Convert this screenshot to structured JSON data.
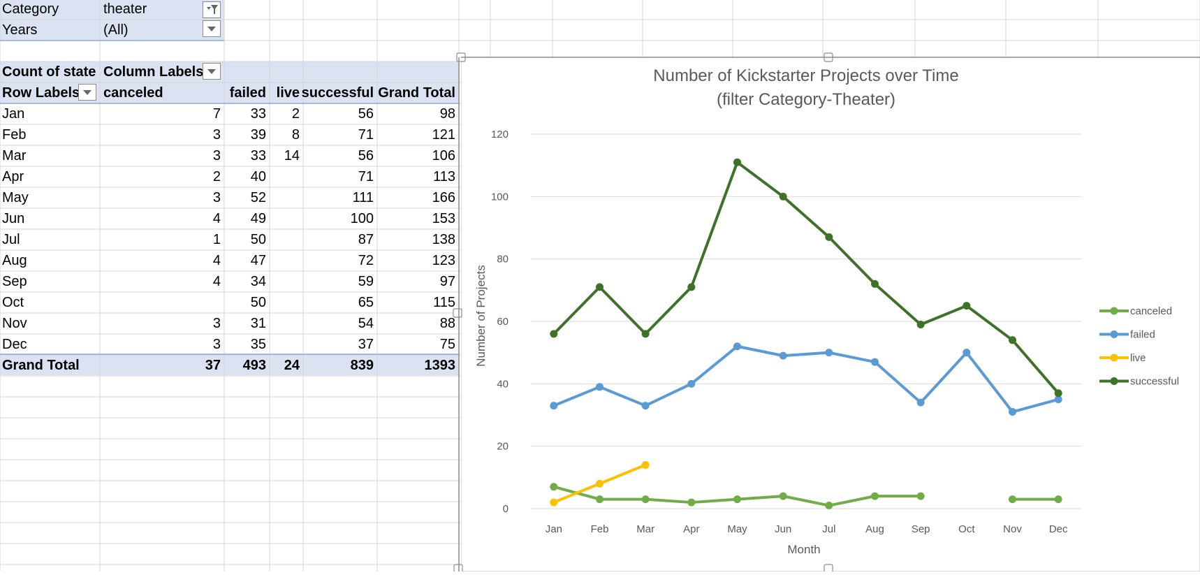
{
  "filters": [
    {
      "label": "Category",
      "value": "theater"
    },
    {
      "label": "Years",
      "value": "(All)"
    }
  ],
  "pivot": {
    "value_header": "Count of state",
    "column_labels": "Column Labels",
    "row_labels": "Row Labels",
    "columns": [
      "canceled",
      "failed",
      "live",
      "successful",
      "Grand Total"
    ],
    "rows": [
      {
        "month": "Jan",
        "values": [
          "7",
          "33",
          "2",
          "56",
          "98"
        ]
      },
      {
        "month": "Feb",
        "values": [
          "3",
          "39",
          "8",
          "71",
          "121"
        ]
      },
      {
        "month": "Mar",
        "values": [
          "3",
          "33",
          "14",
          "56",
          "106"
        ]
      },
      {
        "month": "Apr",
        "values": [
          "2",
          "40",
          "",
          "71",
          "113"
        ]
      },
      {
        "month": "May",
        "values": [
          "3",
          "52",
          "",
          "111",
          "166"
        ]
      },
      {
        "month": "Jun",
        "values": [
          "4",
          "49",
          "",
          "100",
          "153"
        ]
      },
      {
        "month": "Jul",
        "values": [
          "1",
          "50",
          "",
          "87",
          "138"
        ]
      },
      {
        "month": "Aug",
        "values": [
          "4",
          "47",
          "",
          "72",
          "123"
        ]
      },
      {
        "month": "Sep",
        "values": [
          "4",
          "34",
          "",
          "59",
          "97"
        ]
      },
      {
        "month": "Oct",
        "values": [
          "",
          "50",
          "",
          "65",
          "115"
        ]
      },
      {
        "month": "Nov",
        "values": [
          "3",
          "31",
          "",
          "54",
          "88"
        ]
      },
      {
        "month": "Dec",
        "values": [
          "3",
          "35",
          "",
          "37",
          "75"
        ]
      }
    ],
    "grand_total": {
      "label": "Grand Total",
      "values": [
        "37",
        "493",
        "24",
        "839",
        "1393"
      ]
    }
  },
  "chart_data": {
    "type": "line",
    "title_line1": "Number of Kickstarter Projects over Time",
    "title_line2": "(filter Category-Theater)",
    "xlabel": "Month",
    "ylabel": "Number of Projects",
    "categories": [
      "Jan",
      "Feb",
      "Mar",
      "Apr",
      "May",
      "Jun",
      "Jul",
      "Aug",
      "Sep",
      "Oct",
      "Nov",
      "Dec"
    ],
    "ylim": [
      0,
      120
    ],
    "yticks": [
      0,
      20,
      40,
      60,
      80,
      100,
      120
    ],
    "grid": true,
    "legend_position": "right",
    "series": [
      {
        "name": "canceled",
        "color": "#70ad47",
        "values": [
          7,
          3,
          3,
          2,
          3,
          4,
          1,
          4,
          4,
          null,
          3,
          3
        ]
      },
      {
        "name": "failed",
        "color": "#5b9bd5",
        "values": [
          33,
          39,
          33,
          40,
          52,
          49,
          50,
          47,
          34,
          50,
          31,
          35
        ]
      },
      {
        "name": "live",
        "color": "#ffc000",
        "values": [
          2,
          8,
          14,
          null,
          null,
          null,
          null,
          null,
          null,
          null,
          null,
          null
        ]
      },
      {
        "name": "successful",
        "color": "#3f7229",
        "values": [
          56,
          71,
          56,
          71,
          111,
          100,
          87,
          72,
          59,
          65,
          54,
          37
        ]
      }
    ]
  }
}
